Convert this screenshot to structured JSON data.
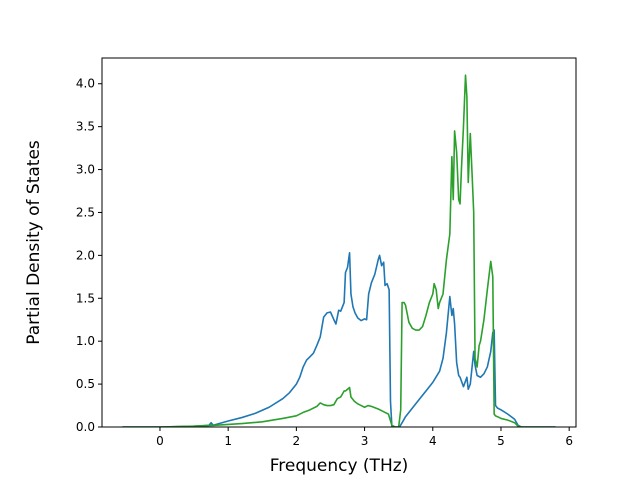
{
  "chart_data": {
    "type": "line",
    "title": "",
    "xlabel": "Frequency (THz)",
    "ylabel": "Partial Density of States",
    "xlim": [
      -0.85,
      6.1
    ],
    "ylim": [
      0,
      4.3
    ],
    "xticks": [
      0,
      1,
      2,
      3,
      4,
      5,
      6
    ],
    "yticks": [
      0.0,
      0.5,
      1.0,
      1.5,
      2.0,
      2.5,
      3.0,
      3.5,
      4.0
    ],
    "xtick_labels": [
      "0",
      "1",
      "2",
      "3",
      "4",
      "5",
      "6"
    ],
    "ytick_labels": [
      "0.0",
      "0.5",
      "1.0",
      "1.5",
      "2.0",
      "2.5",
      "3.0",
      "3.5",
      "4.0"
    ],
    "grid": false,
    "legend": "none",
    "series": [
      {
        "color": "#1f77b4",
        "x": [
          -0.55,
          0.0,
          0.5,
          0.72,
          0.75,
          0.78,
          1.0,
          1.2,
          1.4,
          1.6,
          1.8,
          1.9,
          2.0,
          2.05,
          2.1,
          2.15,
          2.2,
          2.25,
          2.3,
          2.35,
          2.4,
          2.45,
          2.5,
          2.55,
          2.58,
          2.62,
          2.65,
          2.7,
          2.72,
          2.75,
          2.78,
          2.8,
          2.83,
          2.86,
          2.9,
          2.95,
          3.0,
          3.03,
          3.06,
          3.1,
          3.15,
          3.2,
          3.22,
          3.25,
          3.28,
          3.3,
          3.33,
          3.36,
          3.38,
          3.4,
          3.45,
          3.5,
          3.52,
          3.55,
          3.6,
          3.7,
          3.8,
          3.9,
          4.0,
          4.1,
          4.15,
          4.2,
          4.25,
          4.28,
          4.3,
          4.32,
          4.35,
          4.38,
          4.4,
          4.45,
          4.5,
          4.52,
          4.55,
          4.6,
          4.62,
          4.65,
          4.7,
          4.75,
          4.8,
          4.85,
          4.88,
          4.9,
          4.92,
          4.95,
          5.0,
          5.1,
          5.2,
          5.25,
          5.3,
          5.8
        ],
        "y": [
          0.0,
          0.0,
          0.01,
          0.02,
          0.05,
          0.02,
          0.07,
          0.11,
          0.16,
          0.23,
          0.33,
          0.4,
          0.5,
          0.58,
          0.7,
          0.78,
          0.82,
          0.86,
          0.95,
          1.05,
          1.28,
          1.33,
          1.34,
          1.25,
          1.2,
          1.36,
          1.35,
          1.45,
          1.8,
          1.86,
          2.03,
          1.55,
          1.4,
          1.33,
          1.27,
          1.24,
          1.26,
          1.25,
          1.55,
          1.68,
          1.78,
          1.95,
          2.0,
          1.88,
          1.92,
          1.65,
          1.67,
          1.6,
          0.3,
          0.01,
          0.0,
          0.0,
          0.01,
          0.05,
          0.12,
          0.22,
          0.32,
          0.42,
          0.52,
          0.65,
          0.8,
          1.1,
          1.52,
          1.3,
          1.38,
          1.2,
          0.75,
          0.6,
          0.58,
          0.47,
          0.58,
          0.44,
          0.5,
          0.88,
          0.72,
          0.6,
          0.58,
          0.62,
          0.7,
          0.88,
          1.1,
          1.13,
          0.25,
          0.22,
          0.2,
          0.15,
          0.09,
          0.02,
          0.0,
          0.0
        ]
      },
      {
        "color": "#2ca02c",
        "x": [
          -0.55,
          0.0,
          0.5,
          0.8,
          1.0,
          1.2,
          1.5,
          1.8,
          2.0,
          2.1,
          2.2,
          2.3,
          2.35,
          2.4,
          2.45,
          2.5,
          2.55,
          2.6,
          2.65,
          2.7,
          2.72,
          2.75,
          2.78,
          2.8,
          2.85,
          2.9,
          2.95,
          3.0,
          3.05,
          3.1,
          3.2,
          3.3,
          3.35,
          3.4,
          3.45,
          3.5,
          3.53,
          3.55,
          3.58,
          3.6,
          3.65,
          3.7,
          3.75,
          3.8,
          3.85,
          3.9,
          3.95,
          4.0,
          4.02,
          4.05,
          4.08,
          4.1,
          4.15,
          4.2,
          4.25,
          4.28,
          4.3,
          4.32,
          4.35,
          4.38,
          4.4,
          4.42,
          4.45,
          4.48,
          4.5,
          4.52,
          4.55,
          4.58,
          4.6,
          4.62,
          4.65,
          4.68,
          4.7,
          4.75,
          4.8,
          4.85,
          4.88,
          4.9,
          4.92,
          4.95,
          5.0,
          5.1,
          5.2,
          5.25,
          5.3,
          5.8
        ],
        "y": [
          0.0,
          0.0,
          0.01,
          0.02,
          0.03,
          0.04,
          0.06,
          0.1,
          0.13,
          0.17,
          0.2,
          0.24,
          0.28,
          0.26,
          0.25,
          0.25,
          0.26,
          0.33,
          0.35,
          0.42,
          0.42,
          0.44,
          0.46,
          0.35,
          0.3,
          0.27,
          0.25,
          0.23,
          0.25,
          0.24,
          0.21,
          0.17,
          0.15,
          0.02,
          0.0,
          0.0,
          0.2,
          1.45,
          1.45,
          1.42,
          1.22,
          1.15,
          1.13,
          1.13,
          1.17,
          1.3,
          1.45,
          1.55,
          1.67,
          1.6,
          1.38,
          1.45,
          1.55,
          1.95,
          2.25,
          3.15,
          2.65,
          3.45,
          3.2,
          2.65,
          2.6,
          3.0,
          3.5,
          4.1,
          3.85,
          2.85,
          3.42,
          2.88,
          2.5,
          0.8,
          0.7,
          0.95,
          1.0,
          1.25,
          1.6,
          1.93,
          1.75,
          0.15,
          0.13,
          0.12,
          0.1,
          0.08,
          0.05,
          0.01,
          0.0,
          0.0
        ]
      }
    ]
  }
}
